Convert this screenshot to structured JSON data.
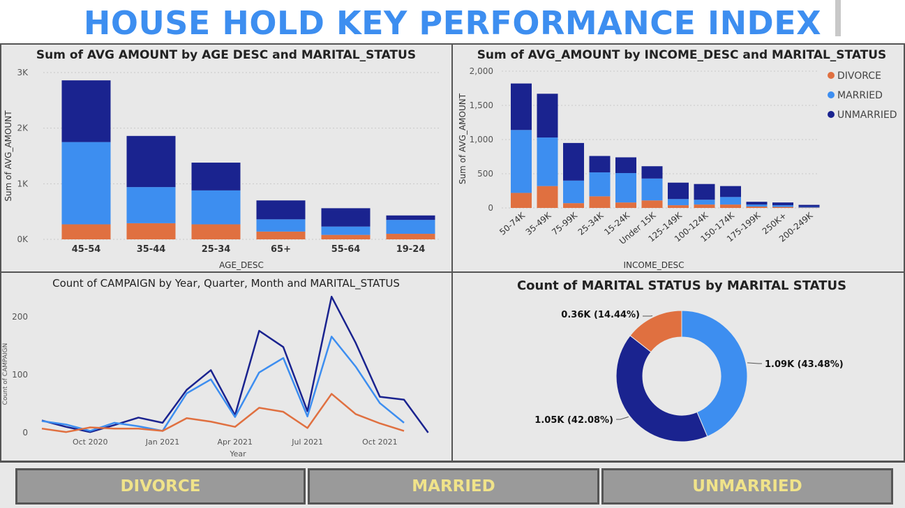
{
  "title": "HOUSE HOLD KEY PERFORMANCE INDEX",
  "colors": {
    "divorce": "#e07040",
    "married": "#3d8ef0",
    "unmarried": "#1a238f"
  },
  "buttons": [
    "DIVORCE",
    "MARRIED",
    "UNMARRIED"
  ],
  "chart_data": [
    {
      "type": "bar",
      "stacked": true,
      "title": "Sum of AVG AMOUNT by AGE DESC and MARITAL_STATUS",
      "xlabel": "AGE_DESC",
      "ylabel": "Sum of AVG_AMOUNT",
      "categories": [
        "45-54",
        "35-44",
        "25-34",
        "65+",
        "55-64",
        "19-24"
      ],
      "ylim": [
        0,
        3000
      ],
      "yticks": [
        "0K",
        "1K",
        "2K",
        "3K"
      ],
      "series": [
        {
          "name": "DIVORCE",
          "values": [
            270,
            290,
            270,
            140,
            80,
            100
          ]
        },
        {
          "name": "MARRIED",
          "values": [
            1480,
            650,
            610,
            220,
            150,
            250
          ]
        },
        {
          "name": "UNMARRIED",
          "values": [
            1110,
            920,
            500,
            340,
            330,
            80
          ]
        }
      ]
    },
    {
      "type": "bar",
      "stacked": true,
      "title": "Sum of AVG_AMOUNT by INCOME_DESC and MARITAL_STATUS",
      "xlabel": "INCOME_DESC",
      "ylabel": "Sum of AVG_AMOUNT",
      "categories": [
        "50-74K",
        "35-49K",
        "75-99K",
        "25-34K",
        "15-24K",
        "Under 15K",
        "125-149K",
        "100-124K",
        "150-174K",
        "175-199K",
        "250K+",
        "200-249K"
      ],
      "ylim": [
        0,
        2000
      ],
      "yticks": [
        "0",
        "500",
        "1,000",
        "1,500",
        "2,000"
      ],
      "legend": [
        "DIVORCE",
        "MARRIED",
        "UNMARRIED"
      ],
      "legend_position": "top-right",
      "series": [
        {
          "name": "DIVORCE",
          "values": [
            220,
            320,
            70,
            170,
            80,
            110,
            40,
            50,
            50,
            20,
            15,
            5
          ]
        },
        {
          "name": "MARRIED",
          "values": [
            920,
            710,
            330,
            350,
            430,
            320,
            90,
            70,
            110,
            30,
            25,
            10
          ]
        },
        {
          "name": "UNMARRIED",
          "values": [
            680,
            640,
            550,
            240,
            230,
            180,
            240,
            230,
            160,
            40,
            40,
            30
          ]
        }
      ]
    },
    {
      "type": "line",
      "title": "Count of CAMPAIGN by Year, Quarter, Month and MARITAL_STATUS",
      "xlabel": "Year",
      "ylabel": "Count of CAMPAIGN",
      "x": [
        "2020-08",
        "2020-09",
        "2020-10",
        "2020-11",
        "2020-12",
        "2021-01",
        "2021-02",
        "2021-03",
        "2021-04",
        "2021-05",
        "2021-06",
        "2021-07",
        "2021-08",
        "2021-09",
        "2021-10",
        "2021-11",
        "2021-12"
      ],
      "xtick_labels": [
        "Oct 2020",
        "Jan 2021",
        "Apr 2021",
        "Jul 2021",
        "Oct 2021"
      ],
      "yticks": [
        "0",
        "100",
        "200"
      ],
      "ylim": [
        0,
        240
      ],
      "series": [
        {
          "name": "DIVORCE",
          "values": [
            7,
            1,
            9,
            7,
            7,
            3,
            25,
            19,
            10,
            43,
            36,
            8,
            67,
            32,
            16,
            3,
            null
          ]
        },
        {
          "name": "MARRIED",
          "values": [
            20,
            14,
            3,
            17,
            11,
            3,
            68,
            92,
            27,
            104,
            129,
            28,
            166,
            114,
            51,
            17,
            null
          ]
        },
        {
          "name": "UNMARRIED",
          "values": [
            21,
            10,
            1,
            13,
            26,
            17,
            74,
            108,
            30,
            176,
            148,
            37,
            235,
            155,
            62,
            57,
            0
          ]
        }
      ]
    },
    {
      "type": "pie",
      "donut": true,
      "title": "Count of MARITAL STATUS by MARITAL STATUS",
      "slices": [
        {
          "name": "MARRIED",
          "value": 1.09,
          "label": "1.09K (43.48%)"
        },
        {
          "name": "UNMARRIED",
          "value": 1.05,
          "label": "1.05K (42.08%)"
        },
        {
          "name": "DIVORCE",
          "value": 0.36,
          "label": "0.36K (14.44%)"
        }
      ]
    }
  ]
}
